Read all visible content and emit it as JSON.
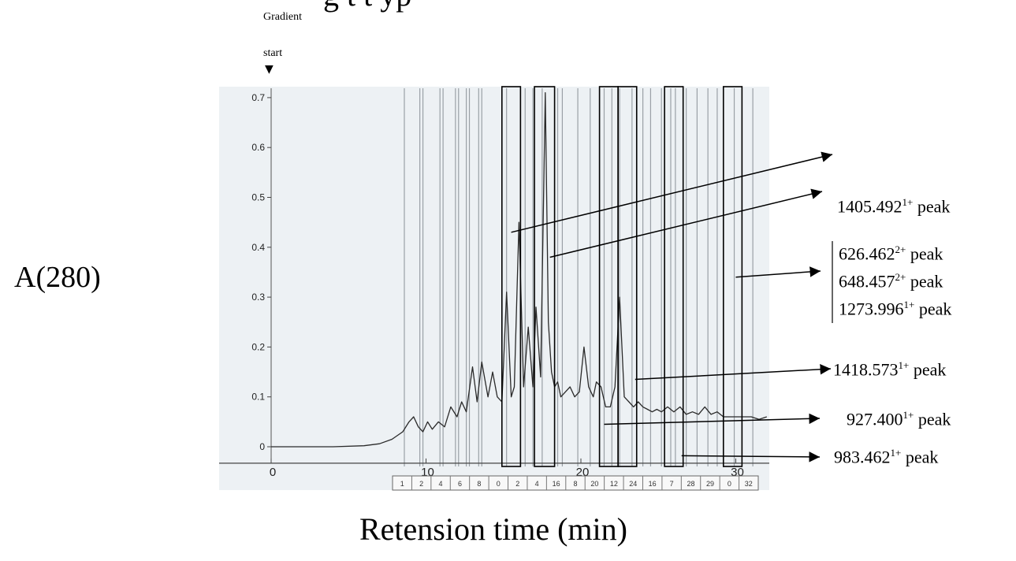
{
  "chart_data": {
    "type": "line",
    "title_truncated": "g t t yp",
    "ylabel": "A(280)",
    "xlabel": "Retension time (min)",
    "xlim": [
      0,
      32
    ],
    "ylim": [
      -0.05,
      0.72
    ],
    "x_ticks": [
      0,
      10,
      20,
      30
    ],
    "x_tick_labels": [
      "0",
      "10",
      "20",
      "30"
    ],
    "y_ticks": [
      0,
      0.1,
      0.2,
      0.3,
      0.4,
      0.5,
      0.6,
      0.7
    ],
    "y_tick_labels": [
      "0",
      "0.1",
      "0.2",
      "0.3",
      "0.4",
      "0.5",
      "0.6",
      "0.7"
    ],
    "gradient_annotation": {
      "line1": "Gradient",
      "line2": "start",
      "marker": "▼",
      "x": 0
    },
    "series": [
      {
        "values_x": [
          0,
          2,
          4,
          6,
          7,
          7.8,
          8.5,
          8.9,
          9.2,
          9.5,
          9.8,
          10.1,
          10.4,
          10.8,
          11.2,
          11.6,
          12.0,
          12.3,
          12.6,
          13.0,
          13.3,
          13.6,
          14.0,
          14.3,
          14.6,
          14.9,
          15.2,
          15.5,
          15.7,
          16.0,
          16.3,
          16.6,
          16.9,
          17.1,
          17.4,
          17.7,
          17.9,
          18.1,
          18.3,
          18.5,
          18.7,
          19.0,
          19.3,
          19.6,
          19.9,
          20.2,
          20.5,
          20.8,
          21.0,
          21.3,
          21.6,
          21.9,
          22.2,
          22.5,
          22.8,
          23.1,
          23.4,
          23.7,
          24.0,
          24.3,
          24.6,
          24.9,
          25.2,
          25.6,
          26.0,
          26.4,
          26.8,
          27.2,
          27.6,
          28.0,
          28.4,
          28.8,
          29.2,
          29.6,
          30.0,
          30.5,
          31.0,
          31.5,
          32.0
        ],
        "values_y": [
          0.0,
          0.0,
          0.0,
          0.002,
          0.006,
          0.015,
          0.03,
          0.05,
          0.06,
          0.04,
          0.03,
          0.05,
          0.035,
          0.05,
          0.04,
          0.08,
          0.06,
          0.09,
          0.07,
          0.16,
          0.09,
          0.17,
          0.1,
          0.15,
          0.1,
          0.09,
          0.31,
          0.1,
          0.12,
          0.45,
          0.12,
          0.24,
          0.12,
          0.28,
          0.14,
          0.71,
          0.25,
          0.15,
          0.12,
          0.13,
          0.1,
          0.11,
          0.12,
          0.1,
          0.11,
          0.2,
          0.12,
          0.1,
          0.13,
          0.12,
          0.08,
          0.08,
          0.12,
          0.3,
          0.1,
          0.09,
          0.08,
          0.09,
          0.08,
          0.075,
          0.07,
          0.075,
          0.07,
          0.08,
          0.07,
          0.08,
          0.065,
          0.07,
          0.065,
          0.08,
          0.065,
          0.07,
          0.06,
          0.06,
          0.06,
          0.06,
          0.06,
          0.055,
          0.06
        ]
      }
    ],
    "fraction_lines_x": [
      8.6,
      9.6,
      9.8,
      10.9,
      11.1,
      11.9,
      12.1,
      12.6,
      12.8,
      13.4,
      13.6,
      15.2,
      16.4,
      16.9,
      17.5,
      18.5,
      18.8,
      19.8,
      20.6,
      21.2,
      21.5,
      22.0,
      22.5,
      23.3,
      24.0,
      24.5,
      25.2,
      25.8,
      26.1,
      26.8,
      27.5,
      28.2,
      28.8,
      29.9,
      31.1
    ],
    "boxes": [
      {
        "x0": 14.9,
        "x1": 16.1
      },
      {
        "x0": 17.0,
        "x1": 18.3
      },
      {
        "x0": 21.2,
        "x1": 22.4
      },
      {
        "x0": 22.4,
        "x1": 23.6
      },
      {
        "x0": 25.4,
        "x1": 26.6
      },
      {
        "x0": 29.2,
        "x1": 30.4
      }
    ],
    "fraction_numbers": [
      "1",
      "2",
      "4",
      "6",
      "8",
      "0",
      "2",
      "4",
      "16",
      "8",
      "20",
      "12",
      "24",
      "16",
      "7",
      "28",
      "29",
      "0",
      "32"
    ],
    "annotations": [
      {
        "lines": [],
        "x": 15.5,
        "y": 0.43
      },
      {
        "lines": [
          {
            "value": "1405.492",
            "charge": "1+",
            "suffix": " peak"
          }
        ],
        "x": 18.0,
        "y": 0.38
      },
      {
        "lines": [
          {
            "value": "626.462",
            "charge": "2+",
            "suffix": " peak"
          },
          {
            "value": "648.457",
            "charge": "2+",
            "suffix": " peak"
          },
          {
            "value": "1273.996",
            "charge": "1+",
            "suffix": " peak"
          }
        ],
        "x": 30.0,
        "y": 0.34
      },
      {
        "lines": [
          {
            "value": "1418.573",
            "charge": "1+",
            "suffix": " peak"
          }
        ],
        "x": 23.5,
        "y": 0.135
      },
      {
        "lines": [
          {
            "value": "927.400",
            "charge": "1+",
            "suffix": " peak"
          }
        ],
        "x": 21.5,
        "y": 0.045
      },
      {
        "lines": [
          {
            "value": "983.462",
            "charge": "1+",
            "suffix": " peak"
          }
        ],
        "x": 26.5,
        "y": -0.018
      }
    ]
  }
}
